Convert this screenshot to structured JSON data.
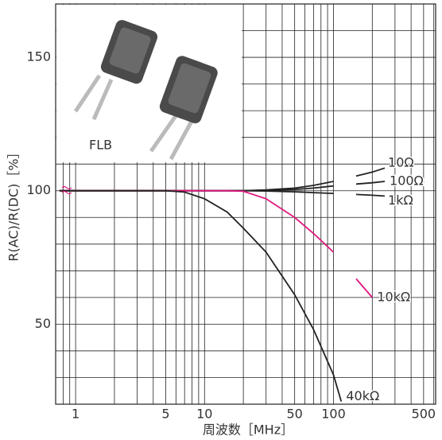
{
  "chart_data": {
    "type": "line",
    "xlabel": "周波数［MHz］",
    "ylabel": "R(AC)/R(DC)［%］",
    "photo_label": "FLB",
    "log_x": true,
    "xlim": [
      0.7,
      620
    ],
    "ylim": [
      20,
      170
    ],
    "xticks": [
      1,
      5,
      10,
      50,
      100,
      500
    ],
    "yticks": [
      50,
      100,
      150
    ],
    "xgrid": [
      0.8,
      0.9,
      1,
      2,
      3,
      4,
      5,
      6,
      7,
      8,
      9,
      10,
      20,
      30,
      40,
      50,
      60,
      70,
      80,
      90,
      100,
      200,
      300,
      400,
      500,
      600
    ],
    "ygrid": [
      30,
      40,
      50,
      60,
      70,
      80,
      90,
      100,
      110,
      120,
      130,
      140,
      150,
      160
    ],
    "x": [
      0.75,
      5,
      7,
      10,
      15,
      20,
      30,
      50,
      70,
      100,
      115,
      150,
      200,
      250
    ],
    "series": [
      {
        "name": "10Ω",
        "color": "#222222",
        "values": [
          100,
          100,
          100,
          100,
          100,
          100,
          100.3,
          101,
          102,
          103.5,
          null,
          105.5,
          107,
          108.5
        ]
      },
      {
        "name": "100Ω",
        "color": "#222222",
        "values": [
          100,
          100,
          100,
          100,
          100,
          100,
          100.2,
          100.5,
          101,
          101.8,
          null,
          102.5,
          103,
          103.5
        ]
      },
      {
        "name": "1kΩ",
        "color": "#222222",
        "values": [
          100,
          100,
          100,
          100,
          100,
          100,
          99.9,
          99.6,
          99.3,
          99,
          null,
          98.6,
          98.3,
          98
        ]
      },
      {
        "name": "10kΩ",
        "color": "#e0177e",
        "values": [
          100,
          100,
          100,
          100,
          100,
          99.8,
          97,
          90,
          84,
          77,
          null,
          67,
          60,
          null
        ]
      },
      {
        "name": "40kΩ",
        "color": "#222222",
        "values": [
          100,
          100,
          99.5,
          97,
          92,
          86,
          77,
          61,
          48,
          31,
          21,
          null,
          null,
          null
        ]
      }
    ]
  }
}
